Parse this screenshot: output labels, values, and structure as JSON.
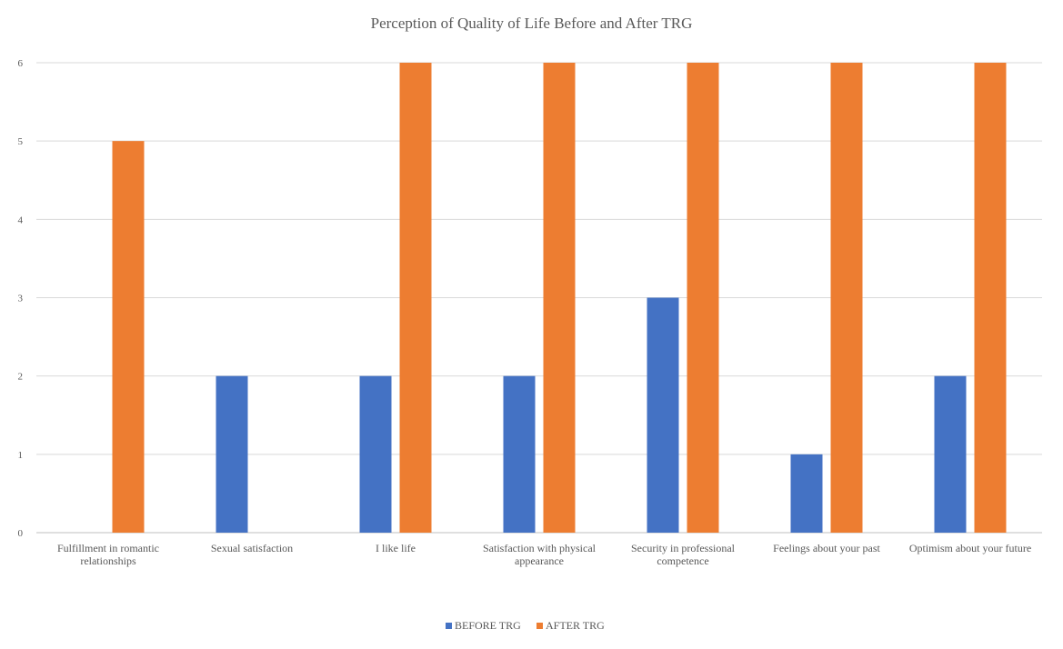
{
  "chart_data": {
    "type": "bar",
    "title": "Perception of Quality of Life Before and After TRG",
    "categories": [
      [
        "Fulfillment in romantic",
        "relationships"
      ],
      [
        "Sexual satisfaction"
      ],
      [
        "I like life"
      ],
      [
        "Satisfaction with physical",
        "appearance"
      ],
      [
        "Security in professional",
        "competence"
      ],
      [
        "Feelings about your past"
      ],
      [
        "Optimism about your future"
      ]
    ],
    "series": [
      {
        "name": "BEFORE TRG",
        "color": "#4472C4",
        "values": [
          0,
          2,
          2,
          2,
          3,
          1,
          2
        ]
      },
      {
        "name": "AFTER TRG",
        "color": "#ED7D31",
        "values": [
          5,
          0,
          6,
          6,
          6,
          6,
          6
        ]
      }
    ],
    "ylim": [
      0,
      6
    ],
    "yticks": [
      "0",
      "1",
      "2",
      "3",
      "4",
      "5",
      "6"
    ],
    "xlabel": "",
    "ylabel": "",
    "grid": true,
    "legend": "bottom"
  }
}
